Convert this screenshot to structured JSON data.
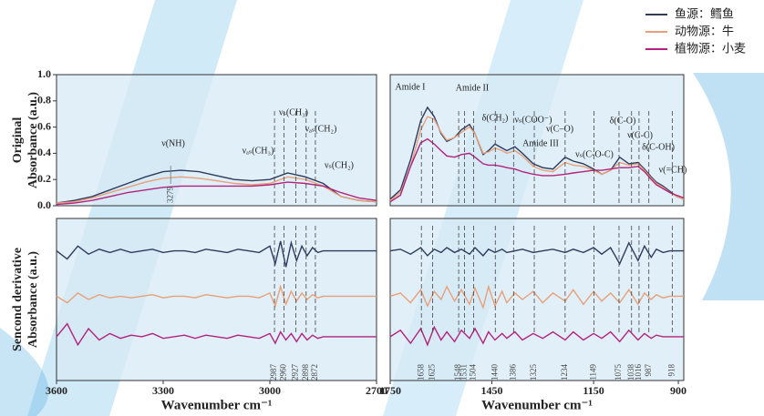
{
  "chart_data": [
    {
      "type": "line",
      "xlim": [
        3600,
        2700
      ],
      "ylim": [
        0,
        1.0
      ],
      "yticks": [
        {
          "value": 0,
          "label": "0.0"
        },
        {
          "value": 0.2,
          "label": "0.2"
        },
        {
          "value": 0.4,
          "label": "0.4"
        },
        {
          "value": 0.6,
          "label": "0.6"
        },
        {
          "value": 0.8,
          "label": "0.8"
        },
        {
          "value": 1.0,
          "label": "1.0"
        }
      ],
      "ylabel": [
        "Original",
        "Absorbance (a.u.)"
      ],
      "x": [
        3600,
        3550,
        3500,
        3450,
        3400,
        3350,
        3300,
        3250,
        3200,
        3150,
        3100,
        3050,
        3000,
        2950,
        2900,
        2850,
        2800,
        2750,
        2700
      ],
      "series": [
        {
          "name": "鱼源：鳕鱼",
          "color": "#2e3b5e",
          "values": [
            0.02,
            0.04,
            0.07,
            0.12,
            0.17,
            0.22,
            0.26,
            0.27,
            0.26,
            0.23,
            0.2,
            0.19,
            0.2,
            0.25,
            0.22,
            0.17,
            0.07,
            0.04,
            0.03
          ]
        },
        {
          "name": "动物源：牛",
          "color": "#e8a07a",
          "values": [
            0.02,
            0.03,
            0.06,
            0.1,
            0.14,
            0.18,
            0.21,
            0.22,
            0.21,
            0.19,
            0.17,
            0.16,
            0.17,
            0.22,
            0.2,
            0.15,
            0.07,
            0.04,
            0.03
          ]
        },
        {
          "name": "植物源：小麦",
          "color": "#b3237e",
          "values": [
            0.01,
            0.02,
            0.04,
            0.07,
            0.1,
            0.12,
            0.14,
            0.15,
            0.15,
            0.15,
            0.15,
            0.15,
            0.16,
            0.18,
            0.17,
            0.15,
            0.1,
            0.06,
            0.04
          ]
        }
      ],
      "annotations": [
        "ν(NH)",
        "νₐₛ(CH₃)",
        "νₛ(CH₃)",
        "νₐₛ(CH₂)",
        "νₛ(CH₂)"
      ],
      "peaks": [
        3279
      ]
    },
    {
      "type": "line",
      "xlim": [
        1750,
        884
      ],
      "ylim": [
        0,
        1.0
      ],
      "x": [
        1750,
        1720,
        1690,
        1660,
        1640,
        1620,
        1600,
        1583,
        1560,
        1540,
        1516,
        1500,
        1476,
        1460,
        1441,
        1420,
        1406,
        1382,
        1360,
        1328,
        1300,
        1270,
        1234,
        1210,
        1180,
        1150,
        1126,
        1100,
        1073,
        1046,
        1019,
        1000,
        980,
        965,
        945,
        925,
        905,
        884
      ],
      "series": [
        {
          "color": "#2e3b5e",
          "values": [
            0.05,
            0.12,
            0.35,
            0.65,
            0.75,
            0.68,
            0.55,
            0.49,
            0.52,
            0.58,
            0.62,
            0.55,
            0.39,
            0.42,
            0.47,
            0.44,
            0.42,
            0.45,
            0.4,
            0.32,
            0.29,
            0.28,
            0.37,
            0.34,
            0.32,
            0.28,
            0.24,
            0.27,
            0.37,
            0.32,
            0.33,
            0.28,
            0.22,
            0.18,
            0.15,
            0.11,
            0.07,
            0.05
          ]
        },
        {
          "color": "#e8a07a",
          "values": [
            0.04,
            0.1,
            0.3,
            0.58,
            0.68,
            0.66,
            0.56,
            0.5,
            0.52,
            0.56,
            0.6,
            0.55,
            0.4,
            0.41,
            0.44,
            0.42,
            0.4,
            0.42,
            0.38,
            0.3,
            0.27,
            0.26,
            0.33,
            0.31,
            0.3,
            0.27,
            0.24,
            0.27,
            0.33,
            0.31,
            0.32,
            0.27,
            0.21,
            0.17,
            0.14,
            0.1,
            0.07,
            0.05
          ]
        },
        {
          "color": "#b3237e",
          "values": [
            0.03,
            0.08,
            0.3,
            0.48,
            0.51,
            0.47,
            0.42,
            0.38,
            0.37,
            0.39,
            0.4,
            0.37,
            0.32,
            0.31,
            0.31,
            0.3,
            0.29,
            0.28,
            0.26,
            0.24,
            0.23,
            0.23,
            0.24,
            0.25,
            0.26,
            0.27,
            0.27,
            0.28,
            0.29,
            0.29,
            0.3,
            0.26,
            0.2,
            0.16,
            0.13,
            0.1,
            0.08,
            0.06
          ]
        }
      ],
      "annotations": [
        "Amide I",
        "Amide II",
        "δ(CH₂)",
        "νₛ(COO⁻)",
        "Amide III",
        "ν(C–O)",
        "νₛ(C-O-C)",
        "δ(C-O)",
        "ν(C-C)",
        "δ(C-OH)",
        "ν(=CH)"
      ]
    },
    {
      "type": "line",
      "xlim": [
        3600,
        2700
      ],
      "ylim": [
        0,
        10
      ],
      "xticks": [
        3600,
        3300,
        3000,
        2700
      ],
      "xlabel": "Wavenumber cm⁻¹",
      "ylabel": [
        "Sencond derivative",
        "Absorbance (a.u.)"
      ],
      "x": [
        3600,
        3570,
        3540,
        3510,
        3480,
        3450,
        3420,
        3390,
        3360,
        3330,
        3300,
        3270,
        3240,
        3210,
        3180,
        3150,
        3120,
        3090,
        3060,
        3030,
        3000,
        2985,
        2970,
        2955,
        2940,
        2925,
        2910,
        2895,
        2880,
        2865,
        2850,
        2820,
        2790,
        2760,
        2730,
        2700
      ],
      "series": [
        {
          "color": "#2e3b5e",
          "values": [
            8.0,
            7.5,
            8.3,
            7.8,
            8.1,
            7.9,
            8.1,
            7.9,
            8.0,
            8.1,
            7.9,
            8.0,
            8.0,
            7.9,
            8.1,
            8.0,
            7.9,
            8.1,
            8.0,
            7.9,
            8.3,
            7.2,
            8.6,
            7.0,
            8.5,
            7.4,
            8.3,
            7.7,
            8.2,
            7.9,
            8.0,
            8.0,
            8.0,
            8.0,
            8.0,
            8.0
          ]
        },
        {
          "color": "#e8a07a",
          "values": [
            5.2,
            4.8,
            5.4,
            5.0,
            5.3,
            5.1,
            5.2,
            5.1,
            5.2,
            5.3,
            5.1,
            5.2,
            5.2,
            5.1,
            5.3,
            5.2,
            5.1,
            5.2,
            5.2,
            5.1,
            5.4,
            4.6,
            5.8,
            4.7,
            5.5,
            4.9,
            5.4,
            5.0,
            5.3,
            5.1,
            5.2,
            5.2,
            5.2,
            5.2,
            5.2,
            5.2
          ]
        },
        {
          "color": "#b3237e",
          "values": [
            2.7,
            3.5,
            2.2,
            3.2,
            2.5,
            2.9,
            2.6,
            2.8,
            2.7,
            2.9,
            2.6,
            2.7,
            2.8,
            2.6,
            2.8,
            2.7,
            2.6,
            2.8,
            2.7,
            2.6,
            2.9,
            2.3,
            3.0,
            2.5,
            2.9,
            2.4,
            2.9,
            2.5,
            2.8,
            2.6,
            2.7,
            2.7,
            2.7,
            2.7,
            2.7,
            2.7
          ]
        }
      ],
      "peaks": [
        2987,
        2960,
        2927,
        2898,
        2872
      ]
    },
    {
      "type": "line",
      "xlim": [
        1750,
        884
      ],
      "ylim": [
        0,
        10
      ],
      "xticks": [
        1750,
        1450,
        1150,
        900
      ],
      "xlabel": "Wavenumber cm⁻¹",
      "x": [
        1750,
        1720,
        1690,
        1660,
        1640,
        1620,
        1600,
        1583,
        1560,
        1540,
        1516,
        1500,
        1476,
        1460,
        1441,
        1420,
        1406,
        1382,
        1360,
        1328,
        1300,
        1270,
        1234,
        1210,
        1180,
        1150,
        1126,
        1100,
        1073,
        1046,
        1019,
        1000,
        980,
        965,
        945,
        925,
        905,
        884
      ],
      "series": [
        {
          "color": "#2e3b5e",
          "values": [
            8.0,
            8.1,
            7.8,
            8.2,
            7.7,
            8.1,
            7.9,
            8.2,
            7.9,
            8.1,
            7.8,
            8.2,
            7.7,
            8.1,
            7.9,
            8.1,
            7.9,
            8.0,
            8.1,
            7.9,
            8.0,
            8.1,
            7.9,
            8.1,
            7.9,
            8.2,
            7.8,
            8.2,
            7.2,
            8.5,
            7.4,
            8.3,
            7.6,
            8.1,
            7.9,
            8.0,
            8.0,
            8.0
          ]
        },
        {
          "color": "#e8a07a",
          "values": [
            5.2,
            5.4,
            4.8,
            5.6,
            4.6,
            5.5,
            5.0,
            5.8,
            4.9,
            5.6,
            4.7,
            5.7,
            4.5,
            5.8,
            4.6,
            5.5,
            4.8,
            5.4,
            5.0,
            5.5,
            4.8,
            5.4,
            4.9,
            5.6,
            4.7,
            5.5,
            4.9,
            5.4,
            4.8,
            5.6,
            4.7,
            5.4,
            5.0,
            5.3,
            5.1,
            5.2,
            5.2,
            5.2
          ]
        },
        {
          "color": "#b3237e",
          "values": [
            2.7,
            3.1,
            2.3,
            3.2,
            2.2,
            3.3,
            2.5,
            3.0,
            2.4,
            3.1,
            2.6,
            3.2,
            2.3,
            3.0,
            2.5,
            2.9,
            2.6,
            3.0,
            2.5,
            2.9,
            2.6,
            3.0,
            2.5,
            3.0,
            2.5,
            2.9,
            2.6,
            3.0,
            2.4,
            3.1,
            2.5,
            2.9,
            2.6,
            2.8,
            2.7,
            2.7,
            2.7,
            2.7
          ]
        }
      ],
      "peaks": [
        1658,
        1625,
        1548,
        1531,
        1504,
        1440,
        1386,
        1325,
        1234,
        1149,
        1075,
        1038,
        1016,
        987,
        918
      ]
    }
  ]
}
